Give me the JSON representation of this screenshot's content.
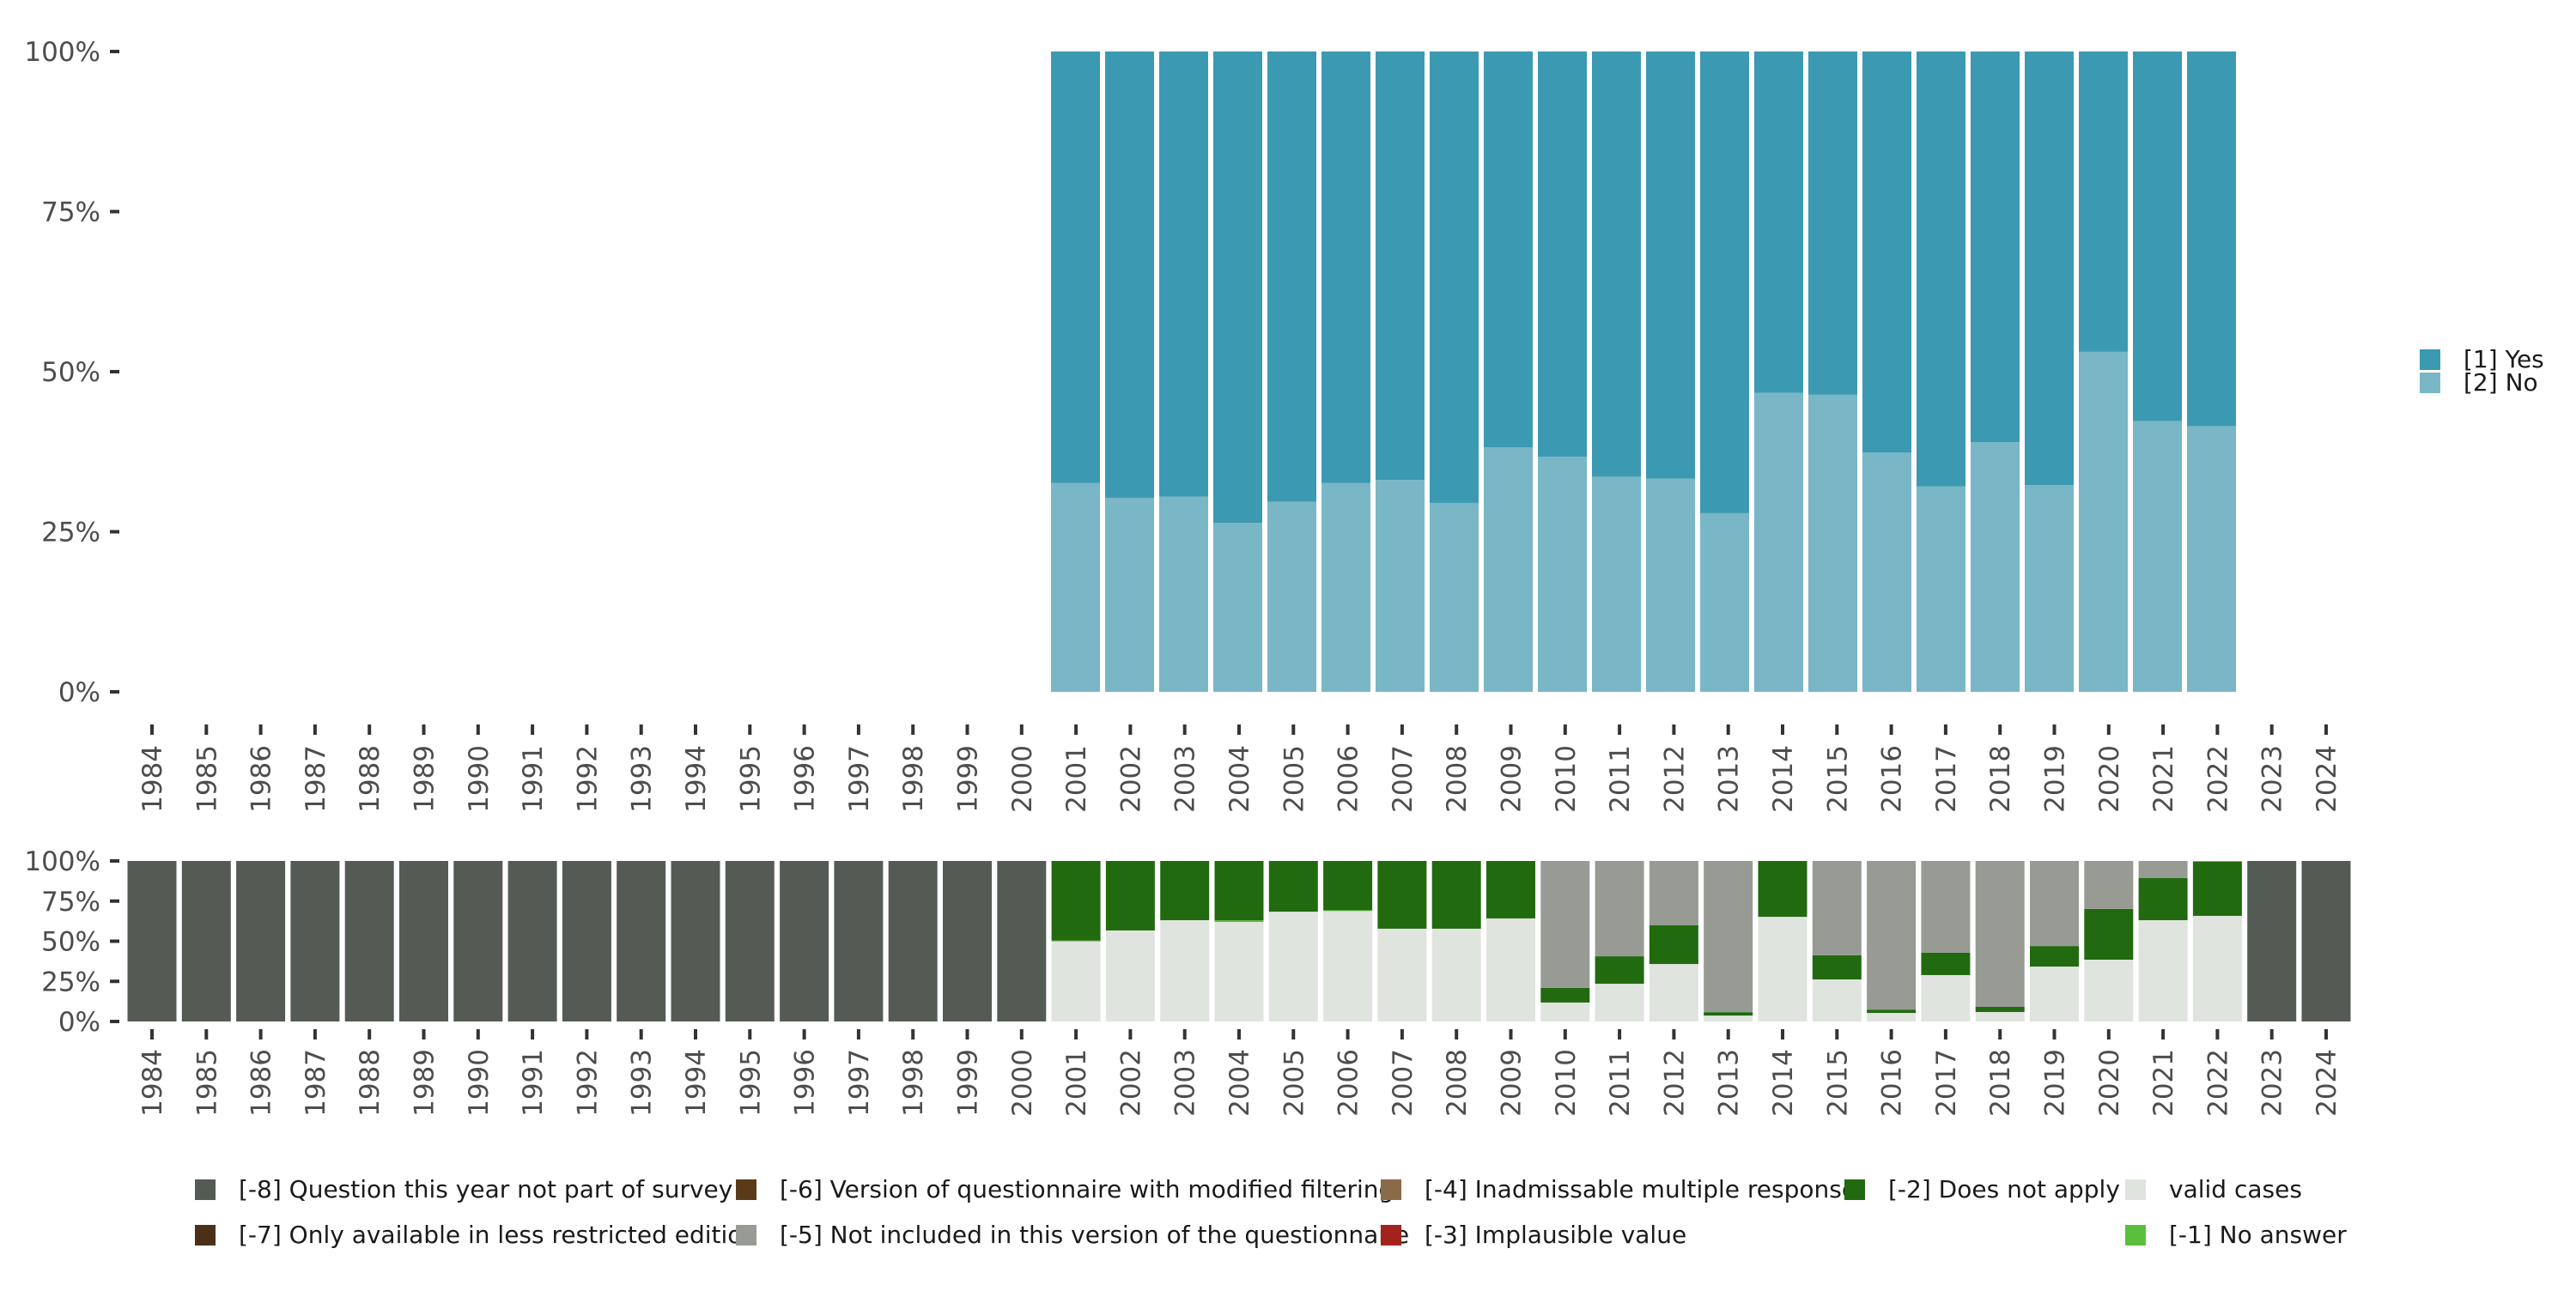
{
  "chart_data": [
    {
      "type": "bar",
      "stacked": true,
      "percent": true,
      "name": "answers-chart",
      "title": "",
      "xlabel": "",
      "ylabel": "",
      "ylim": [
        0,
        1
      ],
      "yticks": [
        "0%",
        "25%",
        "50%",
        "75%",
        "100%"
      ],
      "x_tick_labels": [
        "1984",
        "1985",
        "1986",
        "1987",
        "1988",
        "1989",
        "1990",
        "1991",
        "1992",
        "1993",
        "1994",
        "1995",
        "1996",
        "1997",
        "1998",
        "1999",
        "2000",
        "2001",
        "2002",
        "2003",
        "2004",
        "2005",
        "2006",
        "2007",
        "2008",
        "2009",
        "2010",
        "2011",
        "2012",
        "2013",
        "2014",
        "2015",
        "2016",
        "2017",
        "2018",
        "2019",
        "2020",
        "2021",
        "2022",
        "2023",
        "2024"
      ],
      "categories": [
        "2001",
        "2002",
        "2003",
        "2004",
        "2005",
        "2006",
        "2007",
        "2008",
        "2009",
        "2010",
        "2011",
        "2012",
        "2013",
        "2014",
        "2015",
        "2016",
        "2017",
        "2018",
        "2019",
        "2020",
        "2021",
        "2022"
      ],
      "legend_position": "right",
      "grid": false,
      "series": [
        {
          "name": "[1] Yes",
          "color": "#3c99b2",
          "values": [
            0.674,
            0.697,
            0.695,
            0.736,
            0.703,
            0.674,
            0.669,
            0.705,
            0.618,
            0.633,
            0.664,
            0.667,
            0.721,
            0.533,
            0.536,
            0.626,
            0.679,
            0.61,
            0.677,
            0.469,
            0.577,
            0.585
          ]
        },
        {
          "name": "[2] No",
          "color": "#79b6c6",
          "values": [
            0.326,
            0.303,
            0.305,
            0.264,
            0.297,
            0.326,
            0.331,
            0.295,
            0.382,
            0.367,
            0.336,
            0.333,
            0.279,
            0.467,
            0.464,
            0.374,
            0.321,
            0.39,
            0.323,
            0.531,
            0.423,
            0.415
          ]
        }
      ]
    },
    {
      "type": "bar",
      "stacked": true,
      "percent": true,
      "name": "missing-codes-chart",
      "title": "",
      "xlabel": "",
      "ylabel": "",
      "ylim": [
        0,
        1
      ],
      "yticks": [
        "0%",
        "25%",
        "50%",
        "75%",
        "100%"
      ],
      "categories": [
        "1984",
        "1985",
        "1986",
        "1987",
        "1988",
        "1989",
        "1990",
        "1991",
        "1992",
        "1993",
        "1994",
        "1995",
        "1996",
        "1997",
        "1998",
        "1999",
        "2000",
        "2001",
        "2002",
        "2003",
        "2004",
        "2005",
        "2006",
        "2007",
        "2008",
        "2009",
        "2010",
        "2011",
        "2012",
        "2013",
        "2014",
        "2015",
        "2016",
        "2017",
        "2018",
        "2019",
        "2020",
        "2021",
        "2022",
        "2023",
        "2024"
      ],
      "legend_position": "bottom",
      "grid": false,
      "series": [
        {
          "name": "[-8] Question this year not part of survey",
          "color": "#545b55",
          "values": [
            1,
            1,
            1,
            1,
            1,
            1,
            1,
            1,
            1,
            1,
            1,
            1,
            1,
            1,
            1,
            1,
            1,
            0,
            0,
            0,
            0,
            0,
            0,
            0,
            0,
            0,
            0,
            0,
            0,
            0,
            0,
            0,
            0,
            0,
            0,
            0,
            0,
            0,
            0,
            1,
            1
          ]
        },
        {
          "name": "[-7] Only available in less restricted edition",
          "color": "#4a3019",
          "values": [
            0,
            0,
            0,
            0,
            0,
            0,
            0,
            0,
            0,
            0,
            0,
            0,
            0,
            0,
            0,
            0,
            0,
            0,
            0,
            0,
            0,
            0,
            0,
            0,
            0,
            0,
            0,
            0,
            0,
            0,
            0,
            0,
            0,
            0,
            0,
            0,
            0,
            0,
            0,
            0,
            0
          ]
        },
        {
          "name": "[-6] Version of questionnaire with modified filtering",
          "color": "#5b3a18",
          "values": [
            0,
            0,
            0,
            0,
            0,
            0,
            0,
            0,
            0,
            0,
            0,
            0,
            0,
            0,
            0,
            0,
            0,
            0,
            0,
            0,
            0,
            0,
            0,
            0,
            0,
            0,
            0,
            0,
            0,
            0,
            0,
            0,
            0,
            0,
            0,
            0,
            0,
            0,
            0,
            0,
            0
          ]
        },
        {
          "name": "[-5] Not included in this version of the questionnaire",
          "color": "#979b94",
          "values": [
            0,
            0,
            0,
            0,
            0,
            0,
            0,
            0,
            0,
            0,
            0,
            0,
            0,
            0,
            0,
            0,
            0,
            0,
            0,
            0,
            0,
            0,
            0,
            0,
            0,
            0,
            0.791,
            0.594,
            0.401,
            0.942,
            0,
            0.588,
            0.926,
            0.572,
            0.909,
            0.53,
            0.299,
            0.107,
            0.005,
            0,
            0
          ]
        },
        {
          "name": "[-4] Inadmissable multiple response",
          "color": "#8b6a48",
          "values": [
            0,
            0,
            0,
            0,
            0,
            0,
            0,
            0,
            0,
            0,
            0,
            0,
            0,
            0,
            0,
            0,
            0,
            0,
            0,
            0,
            0,
            0,
            0,
            0,
            0,
            0,
            0,
            0,
            0,
            0,
            0,
            0,
            0,
            0,
            0,
            0,
            0,
            0,
            0,
            0,
            0
          ]
        },
        {
          "name": "[-3] Implausible value",
          "color": "#a2231b",
          "values": [
            0,
            0,
            0,
            0,
            0,
            0,
            0,
            0,
            0,
            0,
            0,
            0,
            0,
            0,
            0,
            0,
            0,
            0,
            0,
            0,
            0,
            0,
            0,
            0,
            0,
            0,
            0,
            0,
            0,
            0,
            0,
            0,
            0,
            0,
            0,
            0,
            0,
            0,
            0,
            0,
            0
          ]
        },
        {
          "name": "[-2] Does not apply",
          "color": "#216a10",
          "values": [
            0,
            0,
            0,
            0,
            0,
            0,
            0,
            0,
            0,
            0,
            0,
            0,
            0,
            0,
            0,
            0,
            0,
            0.496,
            0.433,
            0.369,
            0.37,
            0.316,
            0.307,
            0.422,
            0.422,
            0.358,
            0.091,
            0.171,
            0.241,
            0.021,
            0.348,
            0.15,
            0.021,
            0.139,
            0.032,
            0.128,
            0.316,
            0.262,
            0.337,
            0,
            0
          ]
        },
        {
          "name": "[-1] No answer",
          "color": "#5bbf3e",
          "values": [
            0,
            0,
            0,
            0,
            0,
            0,
            0,
            0,
            0,
            0,
            0,
            0,
            0,
            0,
            0,
            0,
            0,
            0.005,
            0,
            0,
            0.01,
            0,
            0.005,
            0,
            0,
            0,
            0,
            0,
            0,
            0,
            0,
            0,
            0,
            0,
            0,
            0,
            0,
            0,
            0,
            0,
            0
          ]
        },
        {
          "name": "valid cases",
          "color": "#e0e4df",
          "values": [
            0,
            0,
            0,
            0,
            0,
            0,
            0,
            0,
            0,
            0,
            0,
            0,
            0,
            0,
            0,
            0,
            0,
            0.499,
            0.567,
            0.631,
            0.62,
            0.684,
            0.688,
            0.578,
            0.578,
            0.642,
            0.118,
            0.235,
            0.358,
            0.037,
            0.652,
            0.262,
            0.053,
            0.289,
            0.059,
            0.342,
            0.385,
            0.631,
            0.658,
            0,
            0
          ]
        }
      ]
    }
  ],
  "bottom_legend": {
    "rows": [
      [
        {
          "label": "[-8] Question this year not part of survey",
          "color": "#545b55"
        },
        {
          "label": "[-6] Version of questionnaire with modified filtering",
          "color": "#5b3a18"
        },
        {
          "label": "[-4] Inadmissable multiple response",
          "color": "#8b6a48"
        },
        {
          "label": "[-2] Does not apply",
          "color": "#216a10"
        },
        {
          "label": "valid cases",
          "color": "#e0e4df"
        }
      ],
      [
        {
          "label": "[-7] Only available in less restricted edition",
          "color": "#4a3019"
        },
        {
          "label": "[-5] Not included in this version of the questionnaire",
          "color": "#979b94"
        },
        {
          "label": "[-3] Implausible value",
          "color": "#a2231b"
        },
        {
          "label": "",
          "color": ""
        },
        {
          "label": "[-1] No answer",
          "color": "#5bbf3e"
        }
      ]
    ]
  }
}
